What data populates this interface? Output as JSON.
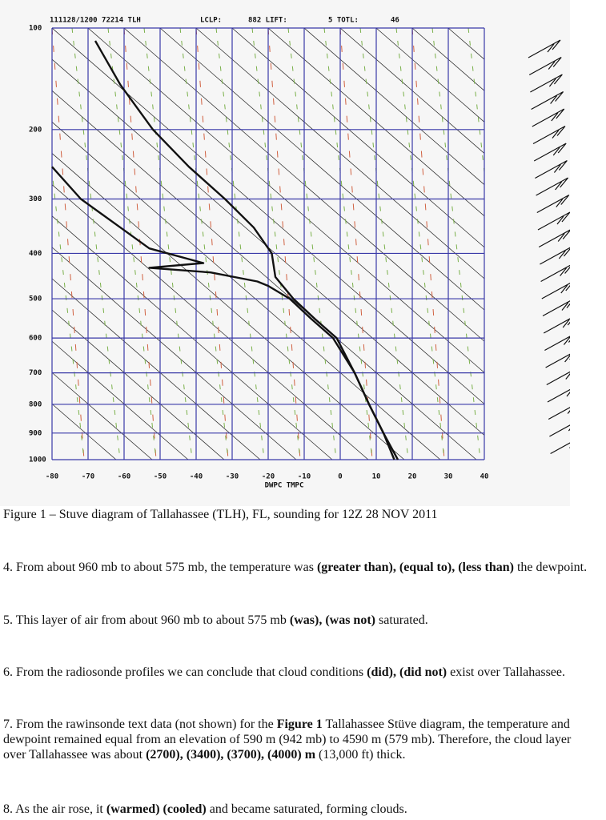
{
  "chart_data": {
    "type": "line",
    "header": [
      "111128/1200 72214 TLH",
      "LCLP:",
      "882 LIFT:",
      "5 TOTL:",
      "46"
    ],
    "xlabel": "DWPC TMPC",
    "xlim": [
      -80,
      40
    ],
    "xticks": [
      -80,
      -70,
      -60,
      -50,
      -40,
      -30,
      -20,
      -10,
      0,
      10,
      20,
      30,
      40
    ],
    "ylim": [
      1000,
      100
    ],
    "yticks": [
      100,
      200,
      300,
      400,
      500,
      600,
      700,
      800,
      900,
      1000
    ],
    "yscale": "stuve",
    "grid": true,
    "grid_color": "#3a3aa8",
    "series": [
      {
        "color": "#111111",
        "x": [
          -68,
          -61,
          -52,
          -42,
          -32,
          -24,
          -19,
          -18,
          -13,
          -7,
          -1,
          4,
          8,
          12,
          16
        ],
        "values": [
          110,
          150,
          200,
          250,
          300,
          350,
          400,
          450,
          500,
          550,
          600,
          700,
          800,
          900,
          1000
        ]
      },
      {
        "color": "#111111",
        "x": [
          -80,
          -72,
          -61,
          -53,
          -38,
          -53,
          -36,
          -23,
          -20,
          -14,
          -8,
          -2,
          4,
          8,
          12,
          15
        ],
        "values": [
          250,
          300,
          350,
          390,
          420,
          430,
          440,
          460,
          470,
          500,
          550,
          600,
          700,
          800,
          900,
          1000
        ]
      }
    ]
  },
  "caption": "Figure 1 – Stuve diagram of Tallahassee (TLH), FL, sounding for 12Z 28 NOV 2011",
  "questions": [
    {
      "segments": [
        {
          "text": "4.  From about 960 mb to about 575 mb, the temperature was ",
          "bold": false
        },
        {
          "text": "(greater than), (equal to), (less than)",
          "bold": true
        },
        {
          "text": " the dewpoint.",
          "bold": false
        }
      ]
    },
    {
      "segments": [
        {
          "text": "5.  This layer of air from about 960 mb to about 575 mb ",
          "bold": false
        },
        {
          "text": "(was), (was not)",
          "bold": true
        },
        {
          "text": " saturated.",
          "bold": false
        }
      ]
    },
    {
      "segments": [
        {
          "text": "6.  From the radiosonde profiles we can conclude that cloud conditions ",
          "bold": false
        },
        {
          "text": "(did), (did not)",
          "bold": true
        },
        {
          "text": " exist over Tallahassee.",
          "bold": false
        }
      ]
    },
    {
      "segments": [
        {
          "text": "7.  From the rawinsonde text data (not shown) for the ",
          "bold": false
        },
        {
          "text": "Figure 1",
          "bold": true
        },
        {
          "text": " Tallahassee Stüve diagram, the temperature and dewpoint remained equal from an elevation of 590 m (942 mb) to 4590 m (579 mb).  Therefore, the cloud layer over Tallahassee was about ",
          "bold": false
        },
        {
          "text": "(2700), (3400), (3700), (4000) m",
          "bold": true
        },
        {
          "text": " (13,000 ft) thick.",
          "bold": false
        }
      ]
    },
    {
      "segments": [
        {
          "text": "8.  As the air rose, it ",
          "bold": false
        },
        {
          "text": "(warmed) (cooled)",
          "bold": true
        },
        {
          "text": " and became saturated, forming clouds.",
          "bold": false
        }
      ]
    }
  ]
}
